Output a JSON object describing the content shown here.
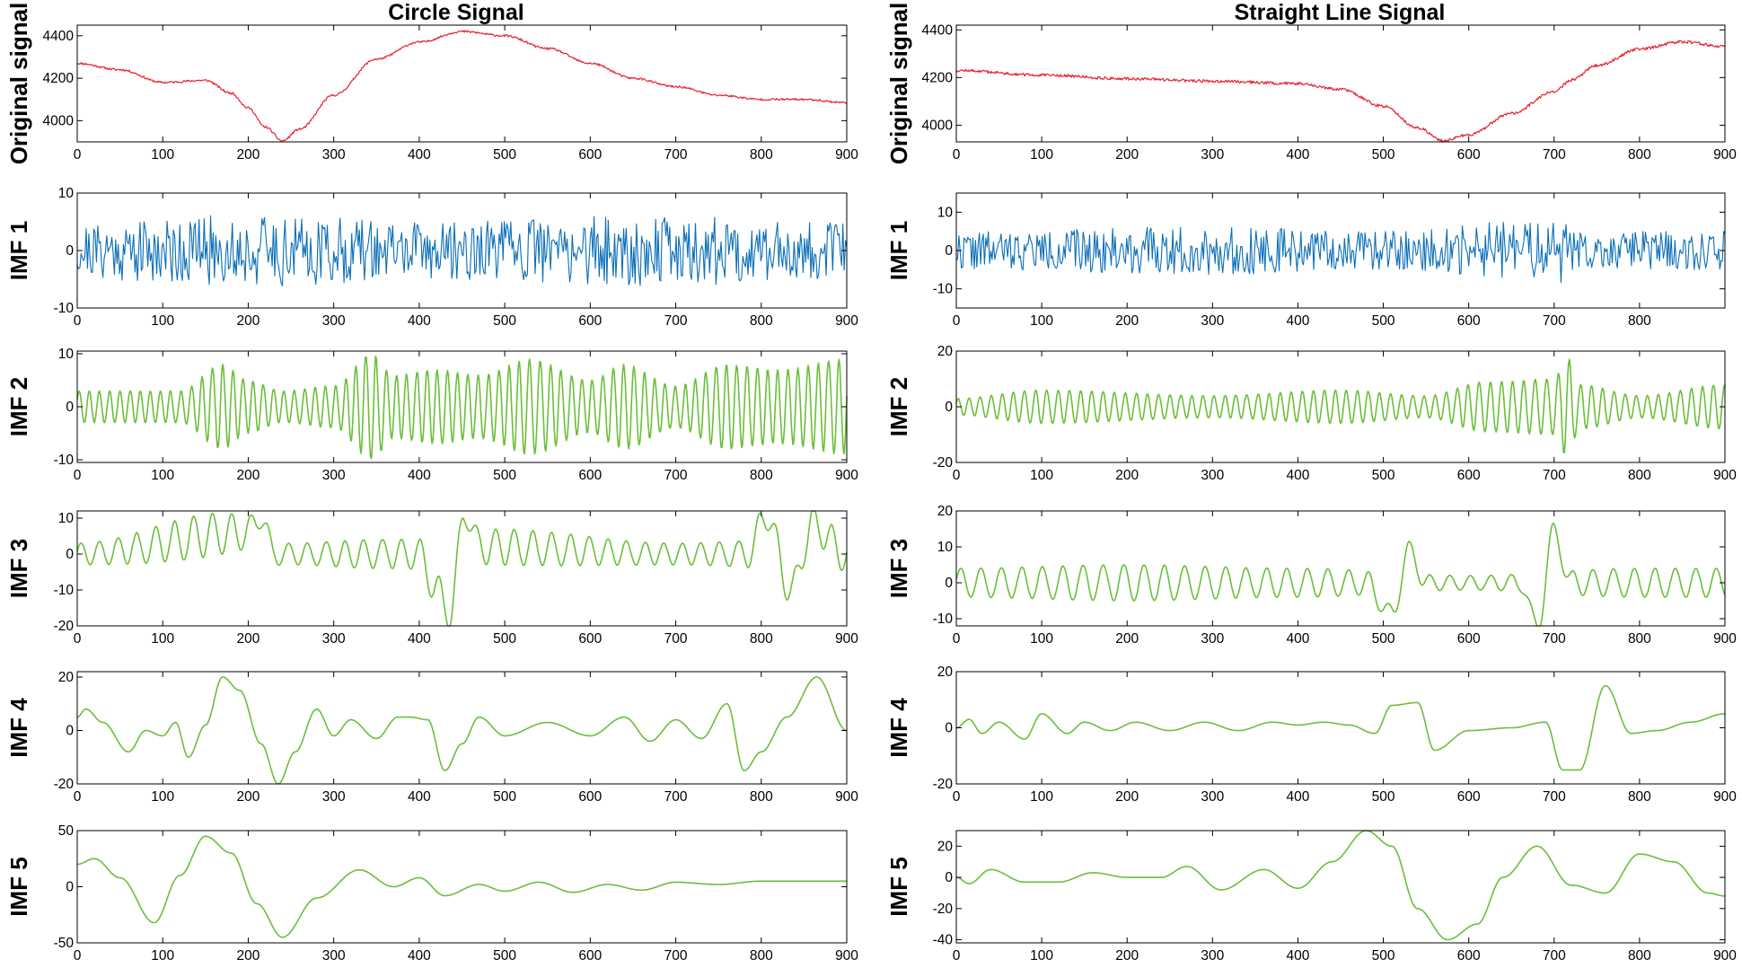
{
  "figure": {
    "columns": [
      {
        "title": "Circle Signal"
      },
      {
        "title": "Straight Line Signal"
      }
    ]
  },
  "colors": {
    "original": "#e8202c",
    "imf1": "#0a6eb8",
    "imf_other": "#6abf3a"
  },
  "chart_data": [
    {
      "type": "line",
      "column": "Circle Signal",
      "row": "original",
      "ylabel": "Original signal",
      "xlim": [
        0,
        900
      ],
      "ylim": [
        3900,
        4450
      ],
      "xticks": [
        0,
        100,
        200,
        300,
        400,
        500,
        600,
        700,
        800,
        900
      ],
      "yticks": [
        4000,
        4200,
        4400
      ],
      "series": [
        {
          "name": "Original signal",
          "x": [
            0,
            50,
            100,
            150,
            180,
            200,
            220,
            240,
            260,
            300,
            350,
            400,
            450,
            500,
            550,
            600,
            650,
            700,
            750,
            800,
            850,
            900
          ],
          "values": [
            4270,
            4240,
            4180,
            4190,
            4130,
            4060,
            3970,
            3905,
            3960,
            4120,
            4290,
            4370,
            4420,
            4400,
            4340,
            4270,
            4200,
            4160,
            4120,
            4100,
            4100,
            4085
          ]
        }
      ],
      "noise": 5,
      "seed": 11
    },
    {
      "type": "line",
      "column": "Circle Signal",
      "row": "imf1",
      "ylabel": "IMF 1",
      "xlim": [
        0,
        900
      ],
      "ylim": [
        -10,
        10
      ],
      "xticks": [
        0,
        100,
        200,
        300,
        400,
        500,
        600,
        700,
        800,
        900
      ],
      "yticks": [
        -10,
        0,
        10
      ],
      "series": [
        {
          "name": "IMF 1",
          "x": [
            0,
            900
          ],
          "values": [
            0,
            0
          ]
        }
      ],
      "oscillation": {
        "amplitude_envelope": [
          [
            0,
            4
          ],
          [
            200,
            5
          ],
          [
            420,
            4
          ],
          [
            700,
            5
          ],
          [
            900,
            4
          ]
        ],
        "period": 4,
        "random": true
      },
      "seed": 21
    },
    {
      "type": "line",
      "column": "Circle Signal",
      "row": "imf2",
      "ylabel": "IMF 2",
      "xlim": [
        0,
        900
      ],
      "ylim": [
        -10.5,
        10.5
      ],
      "xticks": [
        0,
        100,
        200,
        300,
        400,
        500,
        600,
        700,
        800,
        900
      ],
      "yticks": [
        -10,
        0,
        10
      ],
      "series": [
        {
          "name": "IMF 2",
          "x": [
            0,
            900
          ],
          "values": [
            0,
            0
          ]
        }
      ],
      "oscillation": {
        "amplitude_envelope": [
          [
            0,
            3
          ],
          [
            120,
            3
          ],
          [
            170,
            8
          ],
          [
            200,
            5
          ],
          [
            240,
            3
          ],
          [
            300,
            4
          ],
          [
            345,
            10
          ],
          [
            370,
            6
          ],
          [
            420,
            7
          ],
          [
            470,
            6
          ],
          [
            530,
            9
          ],
          [
            600,
            5
          ],
          [
            640,
            8
          ],
          [
            700,
            4
          ],
          [
            760,
            8
          ],
          [
            820,
            7
          ],
          [
            900,
            9
          ]
        ],
        "period": 12,
        "random": false
      },
      "seed": 31
    },
    {
      "type": "line",
      "column": "Circle Signal",
      "row": "imf3",
      "ylabel": "IMF 3",
      "xlim": [
        0,
        900
      ],
      "ylim": [
        -20,
        12
      ],
      "xticks": [
        0,
        100,
        200,
        300,
        400,
        500,
        600,
        700,
        800,
        900
      ],
      "yticks": [
        -20,
        -10,
        0,
        10
      ],
      "series": [
        {
          "name": "IMF 3",
          "x": [
            0,
            200,
            215,
            230,
            300,
            400,
            420,
            435,
            455,
            470,
            700,
            785,
            805,
            835,
            860,
            900
          ],
          "values": [
            0,
            6,
            11,
            0,
            0,
            0,
            -10,
            -16,
            12,
            2,
            0,
            0,
            11,
            -10,
            8,
            0
          ]
        }
      ],
      "oscillation": {
        "amplitude_envelope": [
          [
            0,
            3
          ],
          [
            150,
            6
          ],
          [
            250,
            3
          ],
          [
            350,
            4
          ],
          [
            500,
            5
          ],
          [
            700,
            3
          ],
          [
            900,
            5
          ]
        ],
        "period": 22,
        "random": false
      },
      "seed": 41
    },
    {
      "type": "line",
      "column": "Circle Signal",
      "row": "imf4",
      "ylabel": "IMF 4",
      "xlim": [
        0,
        900
      ],
      "ylim": [
        -20,
        22
      ],
      "xticks": [
        0,
        100,
        200,
        300,
        400,
        500,
        600,
        700,
        800,
        900
      ],
      "yticks": [
        -20,
        0,
        20
      ],
      "series": [
        {
          "name": "IMF 4",
          "x": [
            0,
            10,
            30,
            60,
            80,
            100,
            115,
            130,
            150,
            170,
            190,
            215,
            235,
            255,
            280,
            300,
            320,
            350,
            375,
            390,
            410,
            430,
            450,
            470,
            500,
            550,
            600,
            640,
            670,
            700,
            730,
            760,
            780,
            800,
            830,
            865,
            900
          ],
          "values": [
            5,
            8,
            3,
            -8,
            0,
            -2,
            3,
            -10,
            2,
            20,
            15,
            -5,
            -20,
            -8,
            8,
            -2,
            4,
            -3,
            5,
            5,
            4,
            -15,
            -5,
            5,
            -2,
            3,
            -2,
            5,
            -4,
            4,
            -3,
            10,
            -15,
            -8,
            5,
            20,
            0
          ]
        }
      ],
      "seed": 51
    },
    {
      "type": "line",
      "column": "Circle Signal",
      "row": "imf5",
      "ylabel": "IMF 5",
      "xlim": [
        0,
        900
      ],
      "ylim": [
        -50,
        50
      ],
      "xticks": [
        0,
        100,
        200,
        300,
        400,
        500,
        600,
        700,
        800,
        900
      ],
      "yticks": [
        -50,
        0,
        50
      ],
      "series": [
        {
          "name": "IMF 5",
          "x": [
            0,
            20,
            50,
            90,
            120,
            150,
            180,
            210,
            240,
            280,
            330,
            370,
            400,
            430,
            470,
            500,
            540,
            580,
            620,
            660,
            700,
            750,
            800,
            900
          ],
          "values": [
            20,
            25,
            8,
            -32,
            10,
            45,
            30,
            -15,
            -45,
            -10,
            15,
            0,
            8,
            -8,
            2,
            -4,
            4,
            -5,
            2,
            -3,
            4,
            2,
            5,
            5
          ]
        }
      ],
      "seed": 61
    },
    {
      "type": "line",
      "column": "Straight Line Signal",
      "row": "original",
      "ylabel": "Original signal",
      "xlim": [
        0,
        900
      ],
      "ylim": [
        3930,
        4420
      ],
      "xticks": [
        0,
        100,
        200,
        300,
        400,
        500,
        600,
        700,
        800,
        900
      ],
      "yticks": [
        4000,
        4200,
        4400
      ],
      "series": [
        {
          "name": "Original signal",
          "x": [
            0,
            100,
            200,
            300,
            400,
            450,
            500,
            540,
            570,
            600,
            650,
            700,
            720,
            750,
            800,
            850,
            900
          ],
          "values": [
            4230,
            4210,
            4195,
            4185,
            4175,
            4150,
            4080,
            3990,
            3935,
            3960,
            4050,
            4140,
            4190,
            4250,
            4320,
            4350,
            4330
          ]
        }
      ],
      "noise": 6,
      "seed": 12
    },
    {
      "type": "line",
      "column": "Straight Line Signal",
      "row": "imf1",
      "ylabel": "IMF 1",
      "xlim": [
        0,
        900
      ],
      "ylim": [
        -15,
        15
      ],
      "xticks": [
        0,
        100,
        200,
        300,
        400,
        500,
        600,
        700,
        800
      ],
      "yticks": [
        -10,
        0,
        10
      ],
      "series": [
        {
          "name": "IMF 1",
          "x": [
            0,
            900
          ],
          "values": [
            0,
            0
          ]
        }
      ],
      "oscillation": {
        "amplitude_envelope": [
          [
            0,
            4
          ],
          [
            300,
            5
          ],
          [
            500,
            4
          ],
          [
            710,
            7
          ],
          [
            730,
            4
          ],
          [
            900,
            4
          ]
        ],
        "period": 4,
        "random": true
      },
      "seed": 22
    },
    {
      "type": "line",
      "column": "Straight Line Signal",
      "row": "imf2",
      "ylabel": "IMF 2",
      "xlim": [
        0,
        900
      ],
      "ylim": [
        -20,
        20
      ],
      "xticks": [
        0,
        100,
        200,
        300,
        400,
        500,
        600,
        700,
        800,
        900
      ],
      "yticks": [
        -20,
        0,
        20
      ],
      "series": [
        {
          "name": "IMF 2",
          "x": [
            0,
            900
          ],
          "values": [
            0,
            0
          ]
        }
      ],
      "oscillation": {
        "amplitude_envelope": [
          [
            0,
            3
          ],
          [
            100,
            6
          ],
          [
            300,
            4
          ],
          [
            450,
            6
          ],
          [
            550,
            4
          ],
          [
            620,
            9
          ],
          [
            700,
            10
          ],
          [
            715,
            18
          ],
          [
            730,
            8
          ],
          [
            800,
            4
          ],
          [
            900,
            8
          ]
        ],
        "period": 13,
        "random": false
      },
      "seed": 32
    },
    {
      "type": "line",
      "column": "Straight Line Signal",
      "row": "imf3",
      "ylabel": "IMF 3",
      "xlim": [
        0,
        900
      ],
      "ylim": [
        -12,
        20
      ],
      "xticks": [
        0,
        100,
        200,
        300,
        400,
        500,
        600,
        700,
        800,
        900
      ],
      "yticks": [
        -10,
        0,
        10,
        20
      ],
      "series": [
        {
          "name": "IMF 3",
          "x": [
            0,
            480,
            510,
            530,
            550,
            660,
            680,
            700,
            720,
            900
          ],
          "values": [
            0,
            0,
            -9,
            9,
            0,
            0,
            -12,
            14,
            0,
            0
          ]
        }
      ],
      "oscillation": {
        "amplitude_envelope": [
          [
            0,
            4
          ],
          [
            200,
            5
          ],
          [
            400,
            4
          ],
          [
            600,
            2
          ],
          [
            800,
            4
          ],
          [
            900,
            4
          ]
        ],
        "period": 24,
        "random": false
      },
      "seed": 42
    },
    {
      "type": "line",
      "column": "Straight Line Signal",
      "row": "imf4",
      "ylabel": "IMF 4",
      "xlim": [
        0,
        900
      ],
      "ylim": [
        -20,
        20
      ],
      "xticks": [
        0,
        100,
        200,
        300,
        400,
        500,
        600,
        700,
        800,
        900
      ],
      "yticks": [
        -20,
        0,
        20
      ],
      "series": [
        {
          "name": "IMF 4",
          "x": [
            0,
            15,
            30,
            50,
            80,
            100,
            130,
            150,
            180,
            210,
            250,
            290,
            330,
            370,
            400,
            430,
            460,
            490,
            510,
            540,
            560,
            600,
            650,
            690,
            710,
            730,
            760,
            790,
            820,
            860,
            900
          ],
          "values": [
            0,
            3,
            -2,
            2,
            -4,
            5,
            -2,
            2,
            -1,
            2,
            -1,
            2,
            -1,
            2,
            1,
            2,
            1,
            -2,
            8,
            9,
            -8,
            -1,
            0,
            2,
            -15,
            -15,
            15,
            -2,
            -1,
            2,
            5
          ]
        }
      ],
      "seed": 52
    },
    {
      "type": "line",
      "column": "Straight Line Signal",
      "row": "imf5",
      "ylabel": "IMF 5",
      "xlim": [
        0,
        900
      ],
      "ylim": [
        -42,
        30
      ],
      "xticks": [
        0,
        100,
        200,
        300,
        400,
        500,
        600,
        700,
        800,
        900
      ],
      "yticks": [
        -40,
        -20,
        0,
        20
      ],
      "series": [
        {
          "name": "IMF 5",
          "x": [
            0,
            15,
            40,
            80,
            120,
            160,
            200,
            240,
            270,
            310,
            360,
            400,
            440,
            480,
            510,
            540,
            575,
            610,
            640,
            680,
            720,
            760,
            800,
            840,
            880,
            900
          ],
          "values": [
            0,
            -4,
            5,
            -3,
            -3,
            3,
            0,
            0,
            7,
            -8,
            5,
            -7,
            10,
            30,
            20,
            -20,
            -40,
            -30,
            0,
            20,
            -5,
            -10,
            15,
            10,
            -10,
            -12
          ]
        }
      ],
      "seed": 62
    }
  ]
}
